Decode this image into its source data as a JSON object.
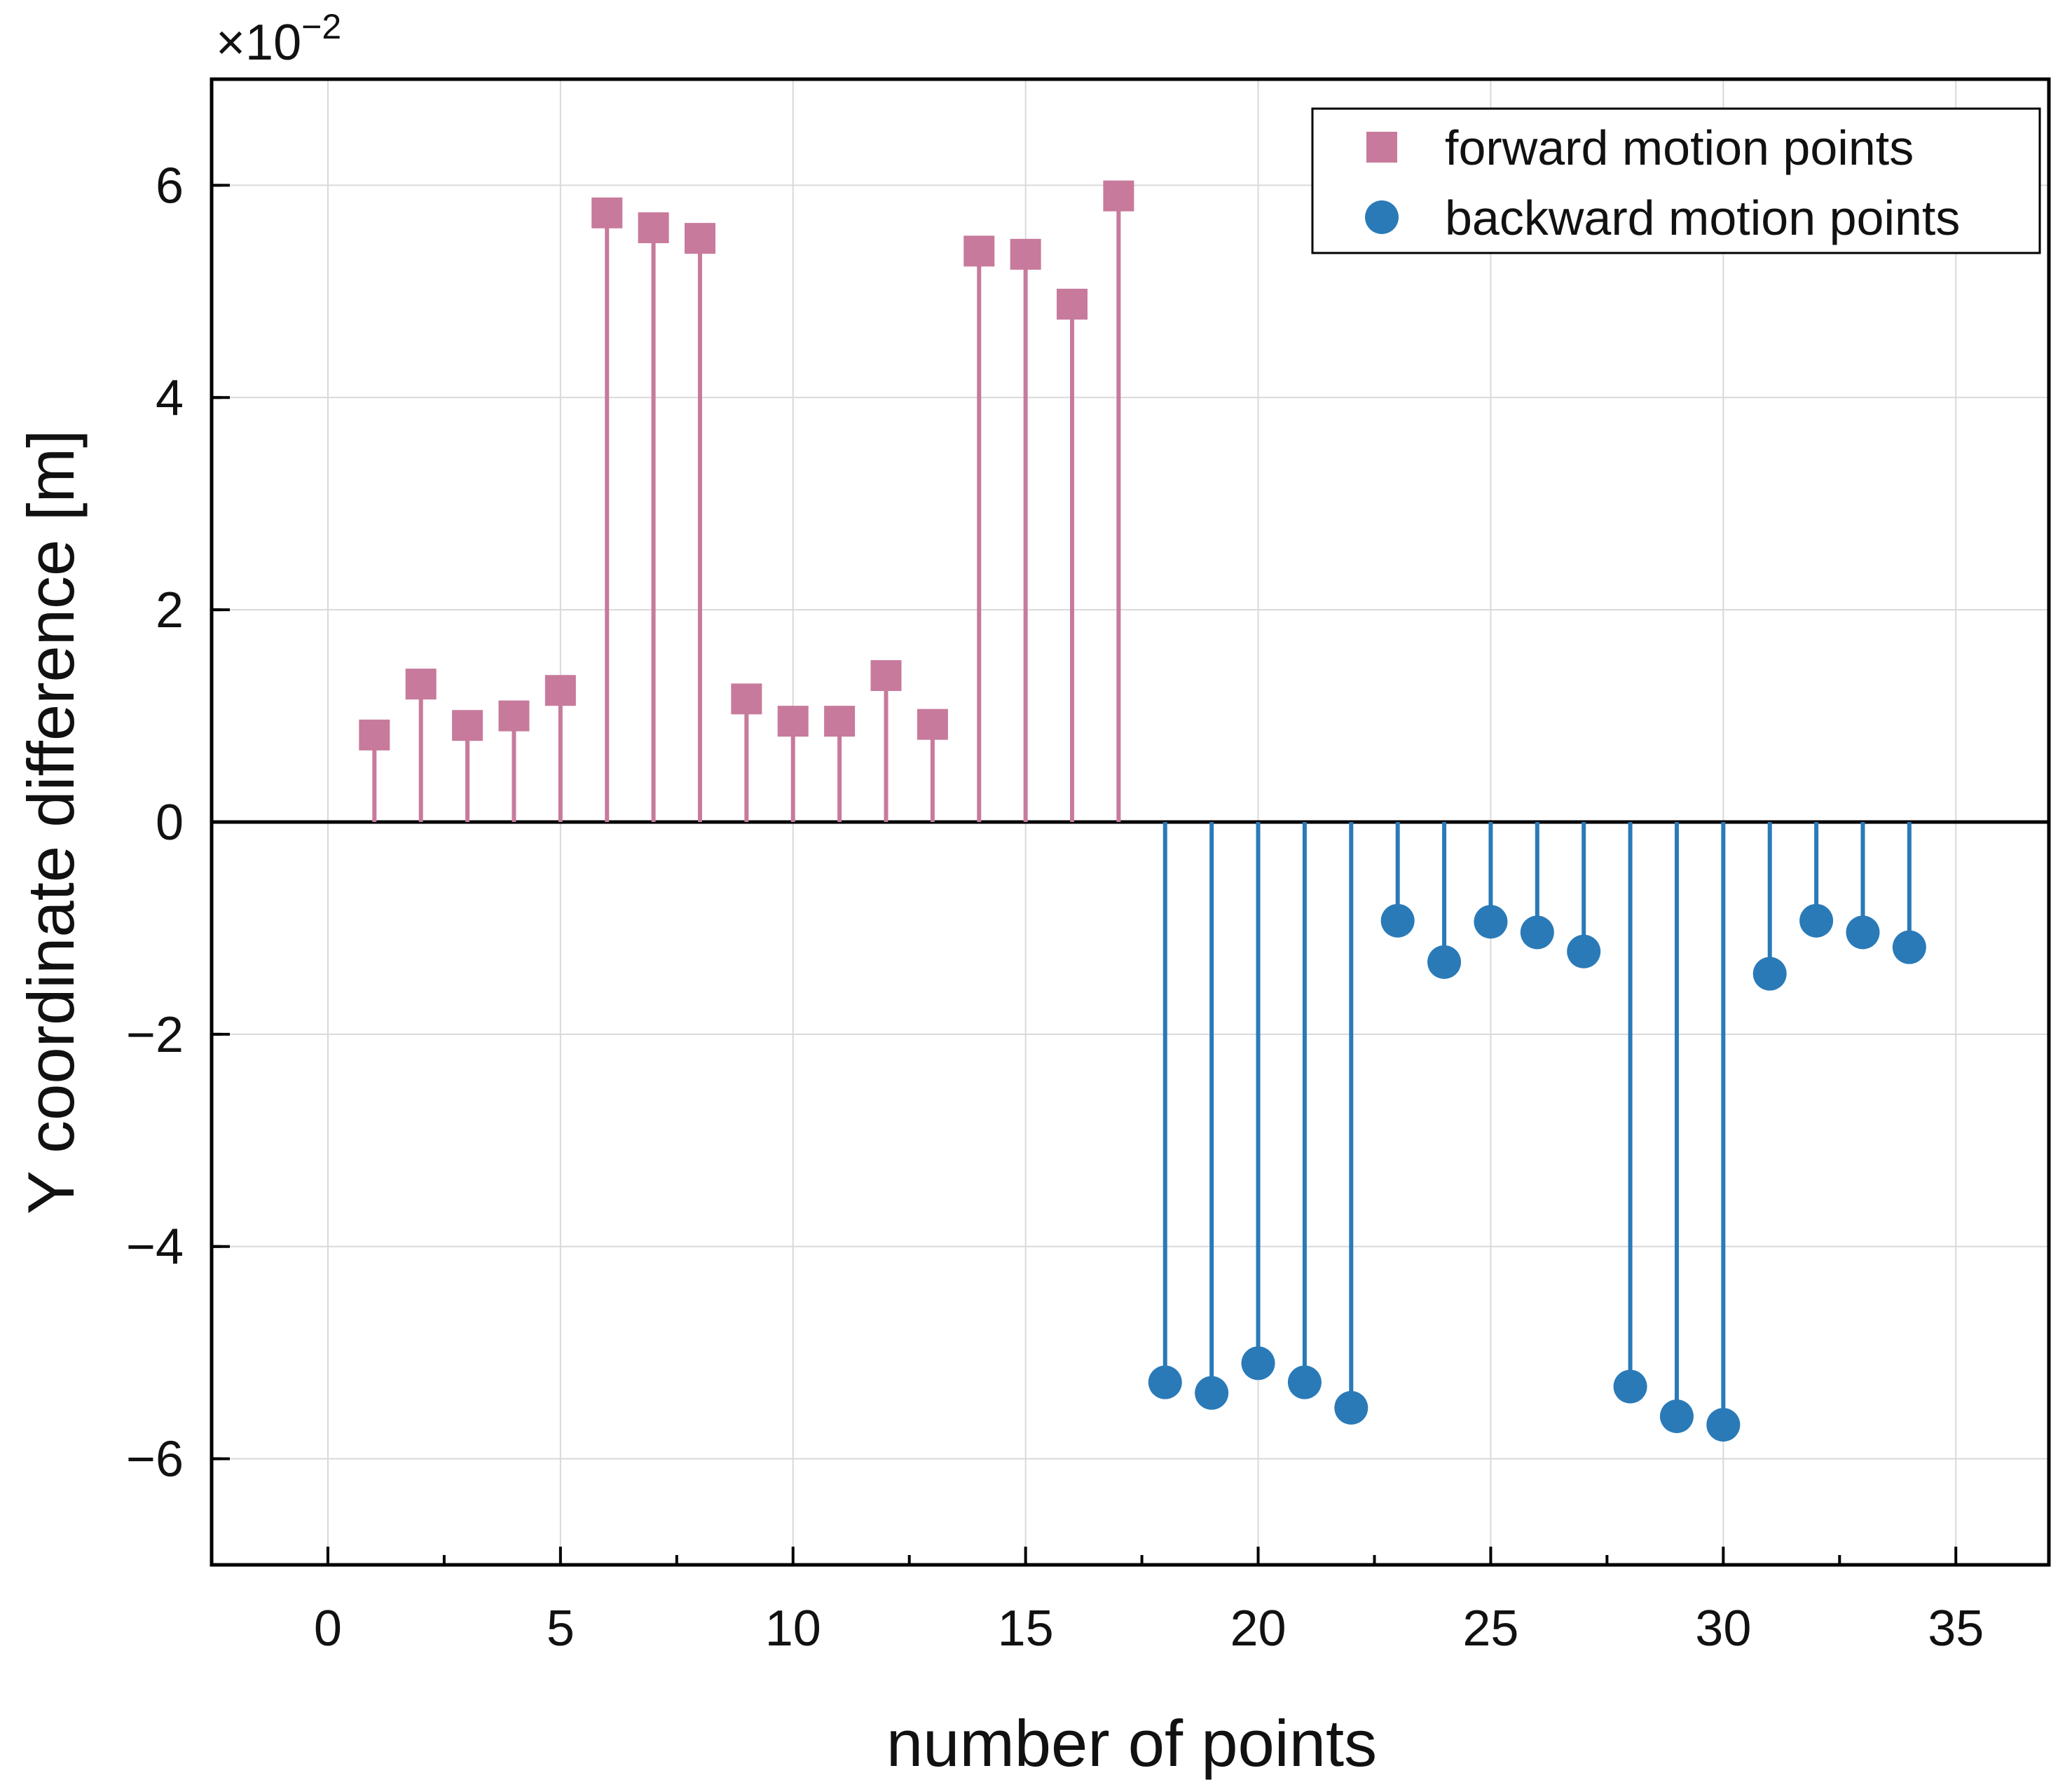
{
  "chart_data": {
    "type": "scatter",
    "style": "stem",
    "title": "",
    "xlabel": "number of points",
    "ylabel": "Y coordinate difference [m]",
    "y_multiplier": {
      "base": "×10",
      "exponent": "−2"
    },
    "xlim": [
      -2.5,
      37
    ],
    "ylim": [
      -7,
      7
    ],
    "grid": true,
    "baseline": 0,
    "x_ticks": [
      0,
      5,
      10,
      15,
      20,
      25,
      30,
      35
    ],
    "x_tick_labels": [
      "0",
      "5",
      "10",
      "15",
      "20",
      "25",
      "30",
      "35"
    ],
    "y_ticks": [
      6,
      4,
      2,
      0,
      -2,
      -4,
      -6
    ],
    "y_tick_labels": [
      "6",
      "4",
      "2",
      "0",
      "−2",
      "−4",
      "−6"
    ],
    "legend_position": "top-right",
    "series": [
      {
        "name": "forward motion points",
        "marker": "square",
        "color": "#C77A9C",
        "x": [
          1,
          2,
          3,
          4,
          5,
          6,
          7,
          8,
          9,
          10,
          11,
          12,
          13,
          14,
          15,
          16,
          17
        ],
        "values": [
          0.82,
          1.3,
          0.91,
          1.0,
          1.24,
          5.74,
          5.6,
          5.5,
          1.16,
          0.95,
          0.95,
          1.38,
          0.92,
          5.38,
          5.35,
          4.88,
          5.9
        ]
      },
      {
        "name": "backward motion points",
        "marker": "circle",
        "color": "#2A7AB8",
        "x": [
          18,
          19,
          20,
          21,
          22,
          23,
          24,
          25,
          26,
          27,
          28,
          29,
          30,
          31,
          32,
          33,
          34
        ],
        "values": [
          -5.28,
          -5.38,
          -5.1,
          -5.28,
          -5.52,
          -0.93,
          -1.32,
          -0.94,
          -1.04,
          -1.22,
          -5.32,
          -5.6,
          -5.68,
          -1.43,
          -0.93,
          -1.04,
          -1.18
        ]
      }
    ]
  }
}
